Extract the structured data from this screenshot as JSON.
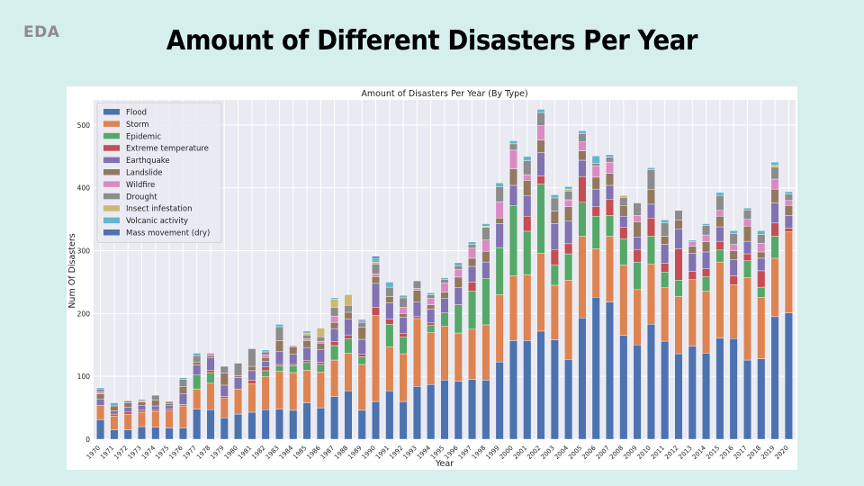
{
  "slide": {
    "section_label": "EDA",
    "title": "Amount of Different Disasters Per Year"
  },
  "chart_data": {
    "type": "bar",
    "stacked": true,
    "title": "Amount of Disasters Per Year (By Type)",
    "xlabel": "Year",
    "ylabel": "Num Of Disasters",
    "ylim": [
      0,
      540
    ],
    "yticks": [
      0,
      100,
      200,
      300,
      400,
      500
    ],
    "grid": true,
    "legend_position": "top-left",
    "categories": [
      "1970",
      "1971",
      "1972",
      "1973",
      "1974",
      "1975",
      "1976",
      "1977",
      "1978",
      "1979",
      "1980",
      "1981",
      "1982",
      "1983",
      "1984",
      "1985",
      "1986",
      "1987",
      "1988",
      "1989",
      "1990",
      "1991",
      "1992",
      "1993",
      "1994",
      "1995",
      "1996",
      "1997",
      "1998",
      "1999",
      "2000",
      "2001",
      "2002",
      "2003",
      "2004",
      "2005",
      "2006",
      "2007",
      "2008",
      "2009",
      "2010",
      "2011",
      "2012",
      "2013",
      "2014",
      "2015",
      "2016",
      "2017",
      "2018",
      "2019",
      "2020"
    ],
    "series": [
      {
        "name": "Flood",
        "color": "#4c72b0",
        "values": [
          31,
          15,
          15,
          20,
          19,
          18,
          18,
          48,
          47,
          34,
          40,
          43,
          47,
          48,
          46,
          58,
          50,
          68,
          77,
          46,
          60,
          77,
          60,
          84,
          87,
          94,
          92,
          95,
          94,
          123,
          157,
          157,
          172,
          158,
          127,
          193,
          226,
          218,
          165,
          150,
          183,
          156,
          136,
          148,
          137,
          161,
          160,
          126,
          128,
          195,
          201
        ]
      },
      {
        "name": "Storm",
        "color": "#dd8452",
        "values": [
          23,
          22,
          25,
          23,
          25,
          27,
          35,
          32,
          42,
          31,
          40,
          45,
          53,
          60,
          60,
          52,
          57,
          58,
          60,
          73,
          137,
          70,
          76,
          108,
          83,
          86,
          77,
          80,
          88,
          107,
          103,
          105,
          124,
          87,
          126,
          130,
          77,
          105,
          112,
          88,
          96,
          85,
          91,
          106,
          99,
          121,
          86,
          131,
          98,
          93,
          129
        ]
      },
      {
        "name": "Epidemic",
        "color": "#55a868",
        "values": [
          0,
          0,
          0,
          0,
          0,
          0,
          0,
          22,
          17,
          0,
          0,
          0,
          9,
          9,
          11,
          12,
          12,
          23,
          23,
          12,
          0,
          36,
          27,
          0,
          11,
          21,
          45,
          61,
          74,
          75,
          112,
          69,
          110,
          32,
          42,
          54,
          52,
          33,
          42,
          44,
          44,
          25,
          26,
          0,
          23,
          19,
          0,
          27,
          16,
          35,
          0
        ]
      },
      {
        "name": "Extreme temperature",
        "color": "#c44e52",
        "values": [
          0,
          3,
          4,
          3,
          2,
          3,
          2,
          0,
          4,
          3,
          0,
          6,
          6,
          2,
          2,
          3,
          3,
          6,
          6,
          4,
          13,
          8,
          5,
          3,
          4,
          0,
          0,
          14,
          0,
          0,
          0,
          24,
          13,
          25,
          16,
          41,
          15,
          26,
          18,
          20,
          29,
          14,
          50,
          13,
          12,
          14,
          14,
          11,
          26,
          21,
          6
        ]
      },
      {
        "name": "Earthquake",
        "color": "#8172b2",
        "values": [
          10,
          5,
          7,
          8,
          7,
          6,
          17,
          16,
          20,
          18,
          18,
          15,
          9,
          21,
          16,
          21,
          21,
          21,
          25,
          24,
          38,
          26,
          26,
          23,
          22,
          23,
          27,
          25,
          26,
          38,
          32,
          32,
          37,
          41,
          36,
          26,
          28,
          22,
          18,
          20,
          22,
          30,
          31,
          29,
          27,
          23,
          26,
          20,
          20,
          32,
          20
        ]
      },
      {
        "name": "Landslide",
        "color": "#937860",
        "values": [
          8,
          8,
          7,
          5,
          9,
          3,
          12,
          5,
          3,
          19,
          3,
          7,
          6,
          17,
          12,
          11,
          10,
          10,
          11,
          19,
          11,
          10,
          6,
          19,
          7,
          10,
          17,
          13,
          17,
          9,
          26,
          25,
          20,
          20,
          23,
          15,
          19,
          19,
          17,
          24,
          23,
          13,
          15,
          11,
          16,
          17,
          14,
          24,
          10,
          22,
          16
        ]
      },
      {
        "name": "Wildfire",
        "color": "#da8bc3",
        "values": [
          3,
          0,
          0,
          2,
          0,
          0,
          0,
          0,
          4,
          0,
          0,
          0,
          4,
          0,
          2,
          3,
          3,
          10,
          0,
          0,
          4,
          0,
          10,
          3,
          10,
          15,
          12,
          16,
          18,
          26,
          30,
          9,
          23,
          0,
          11,
          14,
          18,
          18,
          0,
          10,
          0,
          0,
          0,
          8,
          11,
          9,
          10,
          11,
          14,
          16,
          8
        ]
      },
      {
        "name": "Drought",
        "color": "#8c8c8c",
        "values": [
          5,
          0,
          3,
          2,
          8,
          3,
          11,
          10,
          0,
          11,
          20,
          28,
          5,
          22,
          0,
          6,
          7,
          14,
          11,
          8,
          16,
          15,
          15,
          12,
          6,
          5,
          6,
          6,
          20,
          24,
          10,
          22,
          21,
          21,
          14,
          13,
          4,
          8,
          13,
          20,
          32,
          21,
          15,
          0,
          15,
          24,
          17,
          15,
          14,
          19,
          10
        ]
      },
      {
        "name": "Insect infestation",
        "color": "#ccb974",
        "values": [
          0,
          0,
          0,
          0,
          0,
          0,
          0,
          0,
          0,
          0,
          0,
          0,
          0,
          0,
          0,
          3,
          14,
          13,
          17,
          0,
          3,
          0,
          0,
          0,
          0,
          0,
          0,
          0,
          2,
          0,
          0,
          0,
          0,
          0,
          3,
          0,
          0,
          0,
          3,
          0,
          0,
          0,
          0,
          0,
          0,
          0,
          0,
          0,
          0,
          3,
          0
        ]
      },
      {
        "name": "Volcanic activity",
        "color": "#64b5cd",
        "values": [
          2,
          5,
          0,
          0,
          0,
          0,
          3,
          4,
          0,
          0,
          0,
          0,
          3,
          4,
          0,
          3,
          0,
          2,
          0,
          2,
          6,
          8,
          4,
          0,
          3,
          3,
          5,
          4,
          4,
          6,
          5,
          7,
          5,
          5,
          4,
          5,
          12,
          4,
          0,
          0,
          3,
          5,
          0,
          2,
          3,
          5,
          5,
          3,
          6,
          5,
          4
        ]
      },
      {
        "name": "Mass movement (dry)",
        "color": "#4c72b0",
        "values": [
          0,
          0,
          0,
          0,
          0,
          0,
          0,
          0,
          0,
          0,
          0,
          0,
          0,
          0,
          0,
          0,
          0,
          0,
          0,
          2,
          3,
          0,
          0,
          0,
          0,
          0,
          0,
          0,
          0,
          0,
          0,
          0,
          0,
          0,
          0,
          0,
          0,
          0,
          0,
          0,
          0,
          0,
          0,
          0,
          0,
          0,
          0,
          0,
          0,
          0,
          0
        ]
      }
    ]
  }
}
